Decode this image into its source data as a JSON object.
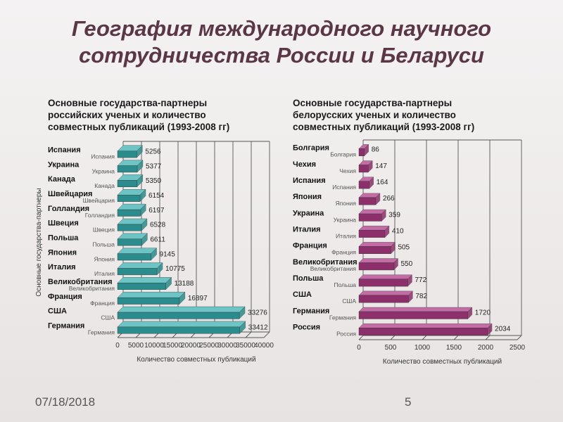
{
  "slide": {
    "title": "География международного научного\nсотрудничества России и Беларуси",
    "subtitle_left": "Основные государства-партнеры\nроссийских ученых и количество\nсовместных публикаций (1993-2008 гг)",
    "subtitle_right": "Основные государства-партнеры\nбелорусских ученых и количество\nсовместных публикаций (1993-2008 гг)",
    "footer_date": "07/18/2018",
    "page_number": "5"
  },
  "colors": {
    "left_bar": "#2a8c8c",
    "left_bar_top": "#6cc4c4",
    "right_bar": "#8c2f6a",
    "right_bar_top": "#c46ca6",
    "title": "#5a3647"
  },
  "chart_data": [
    {
      "type": "bar",
      "orientation": "horizontal",
      "categories": [
        "Испания",
        "Украина",
        "Канада",
        "Швейцария",
        "Голландия",
        "Швеция",
        "Польша",
        "Япония",
        "Италия",
        "Великобритания",
        "Франция",
        "США",
        "Германия"
      ],
      "values": [
        5256,
        5377,
        5350,
        6154,
        6197,
        6528,
        6611,
        9145,
        10775,
        13188,
        16897,
        33276,
        33412
      ],
      "xlabel": "Количество совместных публикаций",
      "ylabel": "Основные государства-партнеры",
      "xlim": [
        0,
        40000
      ],
      "xticks": [
        0,
        5000,
        10000,
        15000,
        20000,
        25000,
        30000,
        35000,
        40000
      ],
      "grid": true,
      "legend": false
    },
    {
      "type": "bar",
      "orientation": "horizontal",
      "categories": [
        "Болгария",
        "Чехия",
        "Испания",
        "Япония",
        "Украина",
        "Италия",
        "Франция",
        "Великобритания",
        "Польша",
        "США",
        "Германия",
        "Россия"
      ],
      "values": [
        86,
        147,
        164,
        266,
        359,
        410,
        505,
        550,
        772,
        782,
        1720,
        2034
      ],
      "xlabel": "Количество совместных публикаций",
      "ylabel": "",
      "xlim": [
        0,
        2500
      ],
      "xticks": [
        0,
        500,
        1000,
        1500,
        2000,
        2500
      ],
      "grid": true,
      "legend": false
    }
  ]
}
